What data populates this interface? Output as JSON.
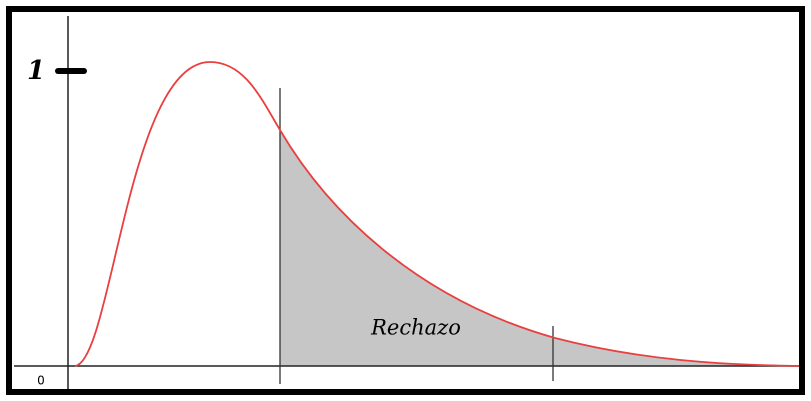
{
  "diagram": {
    "y_label": "1",
    "origin_label": "0",
    "region_label": "Rechazo"
  }
}
